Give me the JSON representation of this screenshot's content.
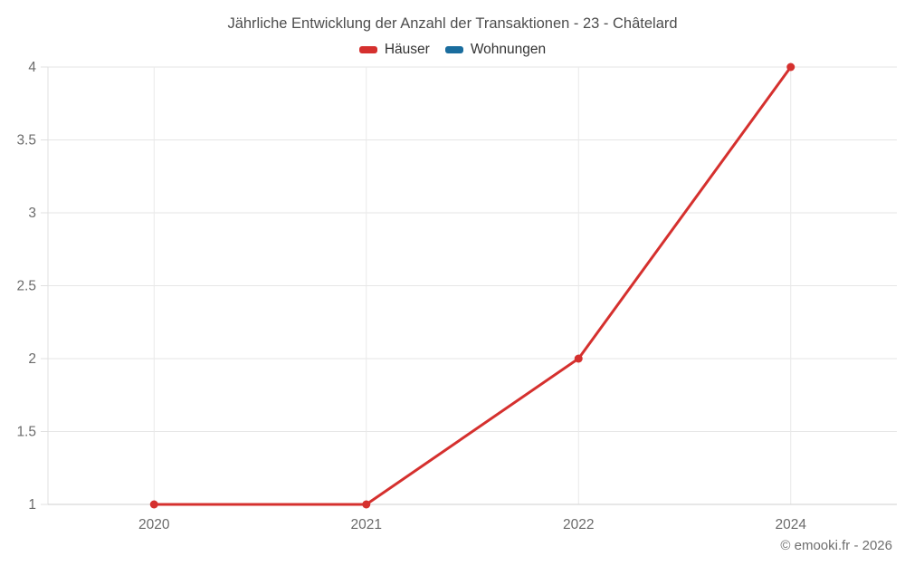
{
  "title": "Jährliche Entwicklung der Anzahl der Transaktionen - 23 - Châtelard",
  "legend": {
    "items": [
      {
        "label": "Häuser",
        "color": "#d5302e"
      },
      {
        "label": "Wohnungen",
        "color": "#1a6d9e"
      }
    ]
  },
  "footer": {
    "copyright": "© emooki.fr - 2026"
  },
  "chart_data": {
    "type": "line",
    "title": "Jährliche Entwicklung der Anzahl der Transaktionen - 23 - Châtelard",
    "categories": [
      "2020",
      "2021",
      "2022",
      "2024"
    ],
    "series": [
      {
        "name": "Häuser",
        "color": "#d5302e",
        "values": [
          1,
          1,
          2,
          4
        ]
      },
      {
        "name": "Wohnungen",
        "color": "#1a6d9e",
        "values": []
      }
    ],
    "xlabel": "",
    "ylabel": "",
    "ylim": [
      1,
      4
    ],
    "yticks": [
      1,
      1.5,
      2,
      2.5,
      3,
      3.5,
      4
    ],
    "grid": true,
    "legend_position": "top"
  },
  "colors": {
    "gridline": "#e6e6e6",
    "category_gridline": "#e9e9e9",
    "y_axis_line": "#e0e0e0",
    "x_axis_line": "#cfcfcf",
    "tick_label": "#6b6b6b",
    "title_text": "#4d4d4d",
    "legend_text": "#333333"
  }
}
